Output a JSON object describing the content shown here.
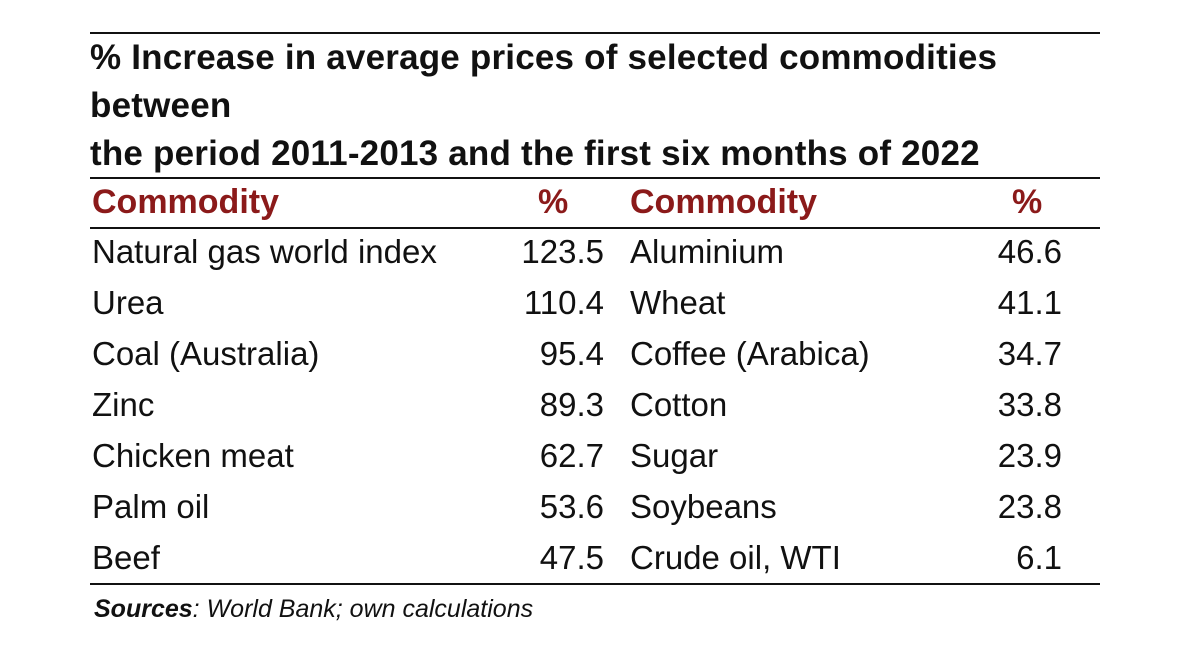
{
  "title_lines": [
    "% Increase in average prices of selected commodities",
    "between",
    "the period 2011-2013 and the first six months of 2022"
  ],
  "headers": {
    "commodity_left": "Commodity",
    "percent_left": "%",
    "commodity_right": "Commodity",
    "percent_right": "%"
  },
  "rows": [
    {
      "left_name": "Natural gas world index",
      "left_value": "123.5",
      "right_name": "Aluminium",
      "right_value": "46.6"
    },
    {
      "left_name": "Urea",
      "left_value": "110.4",
      "right_name": "Wheat",
      "right_value": "41.1"
    },
    {
      "left_name": "Coal (Australia)",
      "left_value": "95.4",
      "right_name": "Coffee (Arabica)",
      "right_value": "34.7"
    },
    {
      "left_name": "Zinc",
      "left_value": "89.3",
      "right_name": "Cotton",
      "right_value": "33.8"
    },
    {
      "left_name": "Chicken meat",
      "left_value": "62.7",
      "right_name": "Sugar",
      "right_value": "23.9"
    },
    {
      "left_name": "Palm oil",
      "left_value": "53.6",
      "right_name": "Soybeans",
      "right_value": "23.8"
    },
    {
      "left_name": "Beef",
      "left_value": "47.5",
      "right_name": "Crude oil, WTI",
      "right_value": "6.1"
    }
  ],
  "source": {
    "label": "Sources",
    "text": ": World Bank; own calculations"
  },
  "colors": {
    "header_text": "#8b1a1a",
    "body_text": "#111111"
  }
}
